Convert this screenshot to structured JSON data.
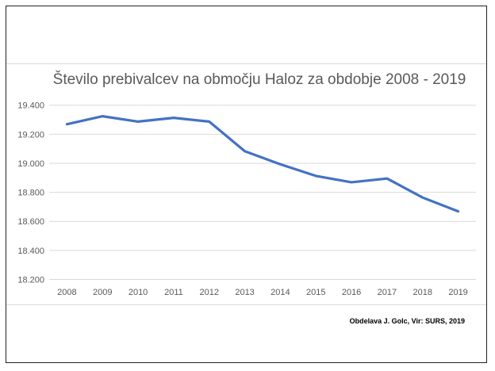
{
  "chart_data": {
    "type": "line",
    "title": "Število prebivalcev na območju Haloz za obdobje 2008 - 2019",
    "xlabel": "",
    "ylabel": "",
    "categories": [
      "2008",
      "2009",
      "2010",
      "2011",
      "2012",
      "2013",
      "2014",
      "2015",
      "2016",
      "2017",
      "2018",
      "2019"
    ],
    "series": [
      {
        "name": "Število prebivalcev",
        "values": [
          19269,
          19324,
          19287,
          19313,
          19287,
          19083,
          18993,
          18913,
          18869,
          18895,
          18764,
          18669
        ],
        "color": "#4472c4"
      }
    ],
    "ylim": [
      18200,
      19400
    ],
    "yticks": [
      18200,
      18400,
      18600,
      18800,
      19000,
      19200,
      19400
    ],
    "ytick_labels": [
      "18.200",
      "18.400",
      "18.600",
      "18.800",
      "19.000",
      "19.200",
      "19.400"
    ],
    "grid": true,
    "source_note": "Obdelava J. Golc, Vir: SURS, 2019"
  }
}
